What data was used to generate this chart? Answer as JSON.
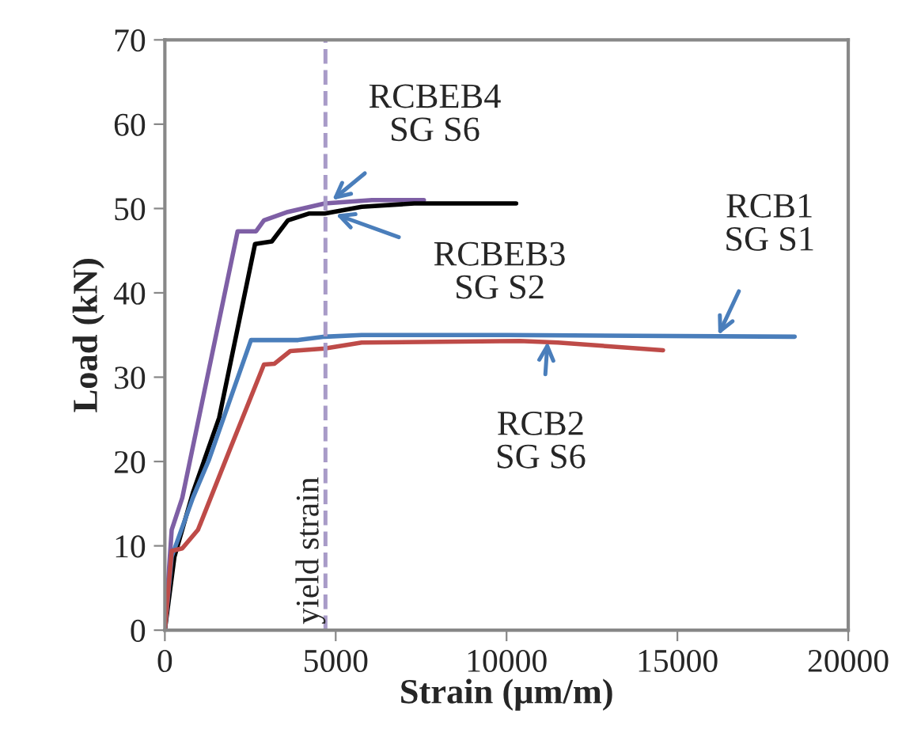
{
  "chart_data": {
    "type": "line",
    "xlabel": "Strain (μm/m)",
    "ylabel": "Load (kN)",
    "xlim": [
      0,
      20000
    ],
    "xticks": [
      0,
      5000,
      10000,
      15000,
      20000
    ],
    "ylim": [
      0,
      70
    ],
    "yticks": [
      0,
      10,
      20,
      30,
      40,
      50,
      60,
      70
    ],
    "grid": false,
    "marker": "none",
    "line_style": "solid",
    "series": [
      {
        "color": "#7e5fa5",
        "x": [
          0,
          200,
          510,
          2130,
          2670,
          2900,
          3600,
          4680,
          6060,
          7580
        ],
        "values": [
          0,
          11.9,
          15.7,
          47.3,
          47.3,
          48.6,
          49.6,
          50.6,
          51.0,
          51.0
        ]
      },
      {
        "color": "#000000",
        "x": [
          0,
          280,
          820,
          1590,
          2640,
          3130,
          3600,
          4210,
          4680,
          5760,
          7300,
          10280
        ],
        "values": [
          0,
          8.7,
          16.3,
          25.2,
          45.8,
          46.1,
          48.6,
          49.4,
          49.4,
          50.2,
          50.6,
          50.6
        ]
      },
      {
        "color": "#4a7ebb",
        "x": [
          0,
          200,
          820,
          1280,
          2520,
          3900,
          4680,
          5760,
          10000,
          18430
        ],
        "values": [
          0,
          8.7,
          15.7,
          20.1,
          34.4,
          34.4,
          34.8,
          35.0,
          35.0,
          34.8
        ]
      },
      {
        "color": "#be4b48",
        "x": [
          0,
          200,
          510,
          970,
          1900,
          2900,
          3210,
          3670,
          4680,
          5760,
          10380,
          11500,
          14580
        ],
        "values": [
          0,
          9.4,
          9.7,
          11.9,
          21.4,
          31.5,
          31.6,
          33.1,
          33.4,
          34.1,
          34.3,
          34.1,
          33.2
        ]
      }
    ],
    "ref_lines": [
      {
        "axis": "x",
        "value": 4700,
        "label": "yield strain",
        "color": "#a89bc8",
        "line_style": "dashed"
      }
    ],
    "annotations": [
      {
        "text": "RCBEB4\nSG S6",
        "x": 4900,
        "y": 51
      },
      {
        "text": "RCBEB3\nSG S2",
        "x": 5000,
        "y": 49.3
      },
      {
        "text": "RCB1\nSG S1",
        "x": 16200,
        "y": 35
      },
      {
        "text": "RCB2\nSG S6",
        "x": 11200,
        "y": 34.2
      }
    ]
  }
}
